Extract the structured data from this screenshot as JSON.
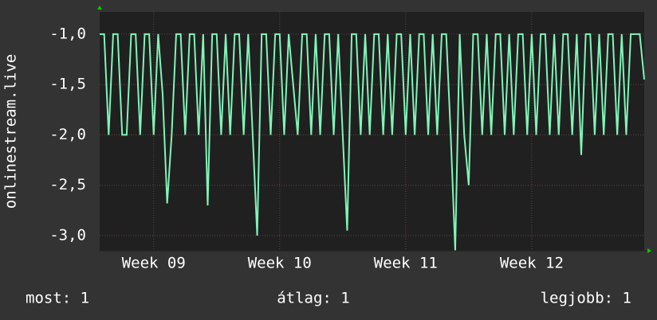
{
  "chart_data": {
    "type": "line",
    "ylabel": "onlinestream.live",
    "x": [
      0,
      0.25,
      0.5,
      0.75,
      1,
      1.25,
      1.5,
      1.75,
      2,
      2.25,
      2.5,
      2.75,
      3,
      3.25,
      3.5,
      3.75,
      4,
      4.25,
      4.5,
      4.75,
      5,
      5.25,
      5.5,
      5.75,
      6,
      6.25,
      6.5,
      6.75,
      7,
      7.25,
      7.5,
      7.75,
      8,
      8.25,
      8.5,
      8.75,
      9,
      9.25,
      9.5,
      9.75,
      10,
      10.25,
      10.5,
      10.75,
      11,
      11.25,
      11.5,
      11.75,
      12,
      12.25,
      12.5,
      12.75,
      13,
      13.25,
      13.5,
      13.75,
      14,
      14.25,
      14.5,
      14.75,
      15,
      15.25,
      15.5,
      15.75,
      16,
      16.25,
      16.5,
      16.75,
      17,
      17.25,
      17.5,
      17.75,
      18,
      18.25,
      18.5,
      18.75,
      19,
      19.25,
      19.5,
      19.75,
      20,
      20.25,
      20.5,
      20.75,
      21,
      21.25,
      21.5,
      21.75,
      22,
      22.25,
      22.5,
      22.75,
      23,
      23.25,
      23.5,
      23.75,
      24,
      24.25,
      24.5,
      24.75,
      25,
      25.25,
      25.5,
      25.75,
      26,
      26.25,
      26.5,
      26.75,
      27,
      27.25,
      27.5,
      27.75,
      28,
      28.25,
      28.5,
      28.75,
      29,
      29.25,
      29.5,
      29.75,
      30,
      30.25
    ],
    "series": [
      {
        "name": "onlinestream.live",
        "color": "#7ff5b8",
        "values": [
          -1,
          -1,
          -2,
          -1,
          -1,
          -2,
          -2,
          -1,
          -1,
          -2,
          -1,
          -1,
          -2,
          -1,
          -1.6,
          -2.68,
          -2,
          -1,
          -1,
          -2,
          -1,
          -1,
          -2,
          -1,
          -2.7,
          -1,
          -1,
          -2,
          -1,
          -2,
          -1,
          -1,
          -2,
          -1,
          -2,
          -3.0,
          -1,
          -1,
          -2,
          -1,
          -1,
          -2,
          -1,
          -1.5,
          -2,
          -1,
          -1,
          -2,
          -1,
          -2,
          -1,
          -1,
          -2,
          -1,
          -2,
          -2.95,
          -1,
          -1,
          -2,
          -1,
          -2,
          -1,
          -1,
          -2,
          -1,
          -2,
          -1,
          -1,
          -2,
          -1,
          -2,
          -1,
          -1,
          -2,
          -1,
          -2,
          -1,
          -1,
          -2,
          -3.15,
          -1,
          -2,
          -2.5,
          -1,
          -1,
          -2,
          -1,
          -2,
          -1,
          -1,
          -2,
          -1,
          -2,
          -1,
          -1,
          -2,
          -1,
          -2,
          -1,
          -1,
          -2,
          -1,
          -2,
          -1,
          -1,
          -2,
          -1,
          -2.2,
          -1,
          -1,
          -2,
          -1,
          -2,
          -1,
          -1,
          -2,
          -1,
          -2,
          -1,
          -1,
          -1,
          -1.45
        ]
      }
    ],
    "xlim": [
      0,
      30.25
    ],
    "xticks": [
      {
        "value": 3,
        "label": "Week 09"
      },
      {
        "value": 10,
        "label": "Week 10"
      },
      {
        "value": 17,
        "label": "Week 11"
      },
      {
        "value": 24,
        "label": "Week 12"
      }
    ],
    "ylim": [
      -3.15,
      -0.78
    ],
    "yticks": [
      {
        "value": -1.0,
        "label": "-1,0"
      },
      {
        "value": -1.5,
        "label": "-1,5"
      },
      {
        "value": -2.0,
        "label": "-2,0"
      },
      {
        "value": -2.5,
        "label": "-2,5"
      },
      {
        "value": -3.0,
        "label": "-3,0"
      }
    ],
    "grid": true,
    "stats": [
      "most: 1",
      "átlag: 1",
      "legjobb: 1"
    ]
  }
}
